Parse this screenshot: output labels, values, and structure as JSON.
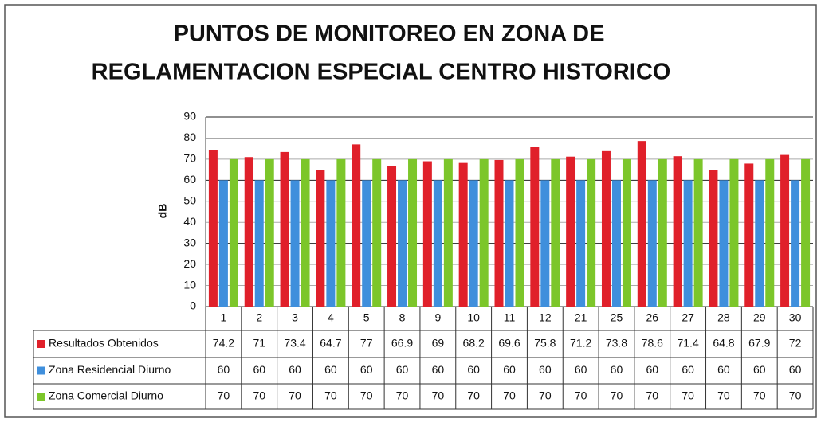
{
  "chart_data": {
    "type": "bar",
    "title": [
      "PUNTOS DE MONITOREO EN ZONA DE",
      "REGLAMENTACION ESPECIAL CENTRO HISTORICO"
    ],
    "ylabel": "dB",
    "categories": [
      "1",
      "2",
      "3",
      "4",
      "5",
      "8",
      "9",
      "10",
      "11",
      "12",
      "21",
      "25",
      "26",
      "27",
      "28",
      "29",
      "30"
    ],
    "series": [
      {
        "name": "Resultados Obtenidos",
        "color": "#e0202a",
        "values": [
          74.2,
          71,
          73.4,
          64.7,
          77,
          66.9,
          69,
          68.2,
          69.6,
          75.8,
          71.2,
          73.8,
          78.6,
          71.4,
          64.8,
          67.9,
          72
        ]
      },
      {
        "name": "Zona Residencial Diurno",
        "color": "#3f8fdc",
        "values": [
          60,
          60,
          60,
          60,
          60,
          60,
          60,
          60,
          60,
          60,
          60,
          60,
          60,
          60,
          60,
          60,
          60
        ]
      },
      {
        "name": "Zona Comercial Diurno",
        "color": "#7cc62a",
        "values": [
          70,
          70,
          70,
          70,
          70,
          70,
          70,
          70,
          70,
          70,
          70,
          70,
          70,
          70,
          70,
          70,
          70
        ]
      }
    ],
    "ylim": [
      0,
      90
    ],
    "yticks": [
      0,
      10,
      20,
      30,
      40,
      50,
      60,
      70,
      80,
      90
    ],
    "grid": true
  }
}
